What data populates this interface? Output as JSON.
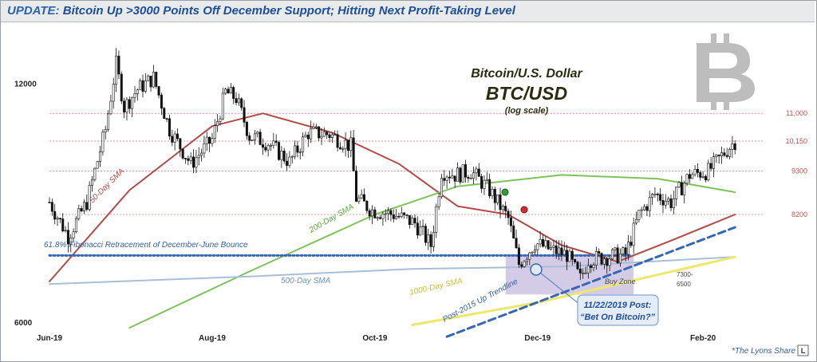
{
  "header": {
    "prefix": "UPDATE:",
    "title": "Bitcoin Up >3000 Points Off December Support; Hitting Next Profit-Taking Level"
  },
  "chart_data": {
    "type": "candlestick",
    "title": "Bitcoin/U.S. Dollar",
    "symbol": "BTC/USD",
    "subtitle": "(log scale)",
    "scale": "log",
    "ylim": [
      5700,
      14200
    ],
    "y_ticks": [
      {
        "value": 12000,
        "label": "12000"
      },
      {
        "value": 6000,
        "label": "6000"
      }
    ],
    "x_ticks": [
      {
        "date": "2019-06-01",
        "label": "Jun-19"
      },
      {
        "date": "2019-08-01",
        "label": "Aug-19"
      },
      {
        "date": "2019-10-01",
        "label": "Oct-19"
      },
      {
        "date": "2019-12-01",
        "label": "Dec-19"
      },
      {
        "date": "2020-02-01",
        "label": "Feb-20"
      }
    ],
    "x_range": [
      "2019-06-01",
      "2020-02-24"
    ],
    "levels": [
      {
        "value": 11000,
        "label": "11,000"
      },
      {
        "value": 10150,
        "label": "10,150"
      },
      {
        "value": 9300,
        "label": "9300"
      },
      {
        "value": 8200,
        "label": "8200"
      }
    ],
    "price_path": [
      [
        "2019-06-01",
        8500
      ],
      [
        "2019-06-08",
        7700
      ],
      [
        "2019-06-15",
        8500
      ],
      [
        "2019-06-22",
        10500
      ],
      [
        "2019-06-26",
        12700
      ],
      [
        "2019-06-29",
        11200
      ],
      [
        "2019-07-04",
        11800
      ],
      [
        "2019-07-10",
        12200
      ],
      [
        "2019-07-16",
        10500
      ],
      [
        "2019-07-24",
        9500
      ],
      [
        "2019-08-01",
        10200
      ],
      [
        "2019-08-06",
        11700
      ],
      [
        "2019-08-10",
        11500
      ],
      [
        "2019-08-15",
        10300
      ],
      [
        "2019-08-22",
        10100
      ],
      [
        "2019-08-30",
        9550
      ],
      [
        "2019-09-06",
        10400
      ],
      [
        "2019-09-14",
        10350
      ],
      [
        "2019-09-22",
        10000
      ],
      [
        "2019-09-24",
        8600
      ],
      [
        "2019-09-30",
        8300
      ],
      [
        "2019-10-08",
        8200
      ],
      [
        "2019-10-16",
        8000
      ],
      [
        "2019-10-22",
        7500
      ],
      [
        "2019-10-26",
        9300
      ],
      [
        "2019-10-31",
        9200
      ],
      [
        "2019-11-06",
        9300
      ],
      [
        "2019-11-13",
        8800
      ],
      [
        "2019-11-20",
        8100
      ],
      [
        "2019-11-24",
        7100
      ],
      [
        "2019-11-30",
        7550
      ],
      [
        "2019-12-06",
        7400
      ],
      [
        "2019-12-12",
        7300
      ],
      [
        "2019-12-17",
        6800
      ],
      [
        "2019-12-20",
        7200
      ],
      [
        "2019-12-27",
        7250
      ],
      [
        "2020-01-03",
        7300
      ],
      [
        "2020-01-08",
        8200
      ],
      [
        "2020-01-14",
        8700
      ],
      [
        "2020-01-20",
        8500
      ],
      [
        "2020-01-27",
        9200
      ],
      [
        "2020-02-03",
        9300
      ],
      [
        "2020-02-10",
        9900
      ],
      [
        "2020-02-13",
        10150
      ]
    ],
    "series": [
      {
        "name": "50-Day SMA",
        "color": "#b44a47",
        "values": [
          [
            "2019-06-01",
            6750
          ],
          [
            "2019-07-01",
            8800
          ],
          [
            "2019-08-01",
            10600
          ],
          [
            "2019-08-20",
            11000
          ],
          [
            "2019-09-15",
            10400
          ],
          [
            "2019-10-10",
            9500
          ],
          [
            "2019-11-01",
            8400
          ],
          [
            "2019-11-20",
            8200
          ],
          [
            "2019-12-10",
            7500
          ],
          [
            "2019-12-31",
            7150
          ],
          [
            "2020-01-20",
            7600
          ],
          [
            "2020-02-13",
            8200
          ]
        ]
      },
      {
        "name": "200-Day SMA",
        "color": "#7dc35a",
        "values": [
          [
            "2019-07-01",
            5900
          ],
          [
            "2019-08-15",
            6950
          ],
          [
            "2019-10-01",
            8200
          ],
          [
            "2019-11-01",
            8900
          ],
          [
            "2019-12-10",
            9200
          ],
          [
            "2020-01-15",
            9100
          ],
          [
            "2020-02-13",
            8750
          ]
        ]
      },
      {
        "name": "500-Day SMA",
        "color": "#a9bed8",
        "values": [
          [
            "2019-06-01",
            6700
          ],
          [
            "2019-08-15",
            6850
          ],
          [
            "2019-10-15",
            7000
          ],
          [
            "2019-12-10",
            7050
          ],
          [
            "2020-02-13",
            7250
          ]
        ]
      },
      {
        "name": "1000-Day SMA",
        "color": "#ece96a",
        "values": [
          [
            "2019-10-15",
            5950
          ],
          [
            "2019-12-01",
            6350
          ],
          [
            "2020-02-13",
            7250
          ]
        ]
      },
      {
        "name": "Post-2015 Up Trendline",
        "color": "#3567b4",
        "values": [
          [
            "2019-10-28",
            5750
          ],
          [
            "2020-02-13",
            7900
          ]
        ]
      },
      {
        "name": "61.8% Fibonacci Retracement of December-June Bounce",
        "color": "#3567b4",
        "values": [
          [
            "2019-06-01",
            7280
          ],
          [
            "2020-01-05",
            7280
          ]
        ]
      }
    ],
    "annotations": {
      "sma50": "50-Day SMA",
      "sma200": "200-Day SMA",
      "sma500": "500-Day SMA",
      "sma1000": "1000-Day SMA",
      "fib": "61.8% Fibonacci Retracement of December-June Bounce",
      "trendline": "Post-2015 Up Trendline",
      "buy_zone": "Buy Zone",
      "buy_zone_range": [
        "7300-",
        "6500"
      ],
      "post_line1": "11/22/2019 Post:",
      "post_line2": "“Bet On Bitcoin?”"
    },
    "buy_zone_range_values": [
      6500,
      7300
    ],
    "buy_zone_dates": [
      "2019-11-19",
      "2020-01-06"
    ],
    "colors": {
      "candle_up": "#ffffff",
      "candle_down": "#111111",
      "levels": "#e47777",
      "fib": "#3567b4"
    }
  },
  "footer": {
    "credit": "*The Lyons Share",
    "badge": "L"
  }
}
